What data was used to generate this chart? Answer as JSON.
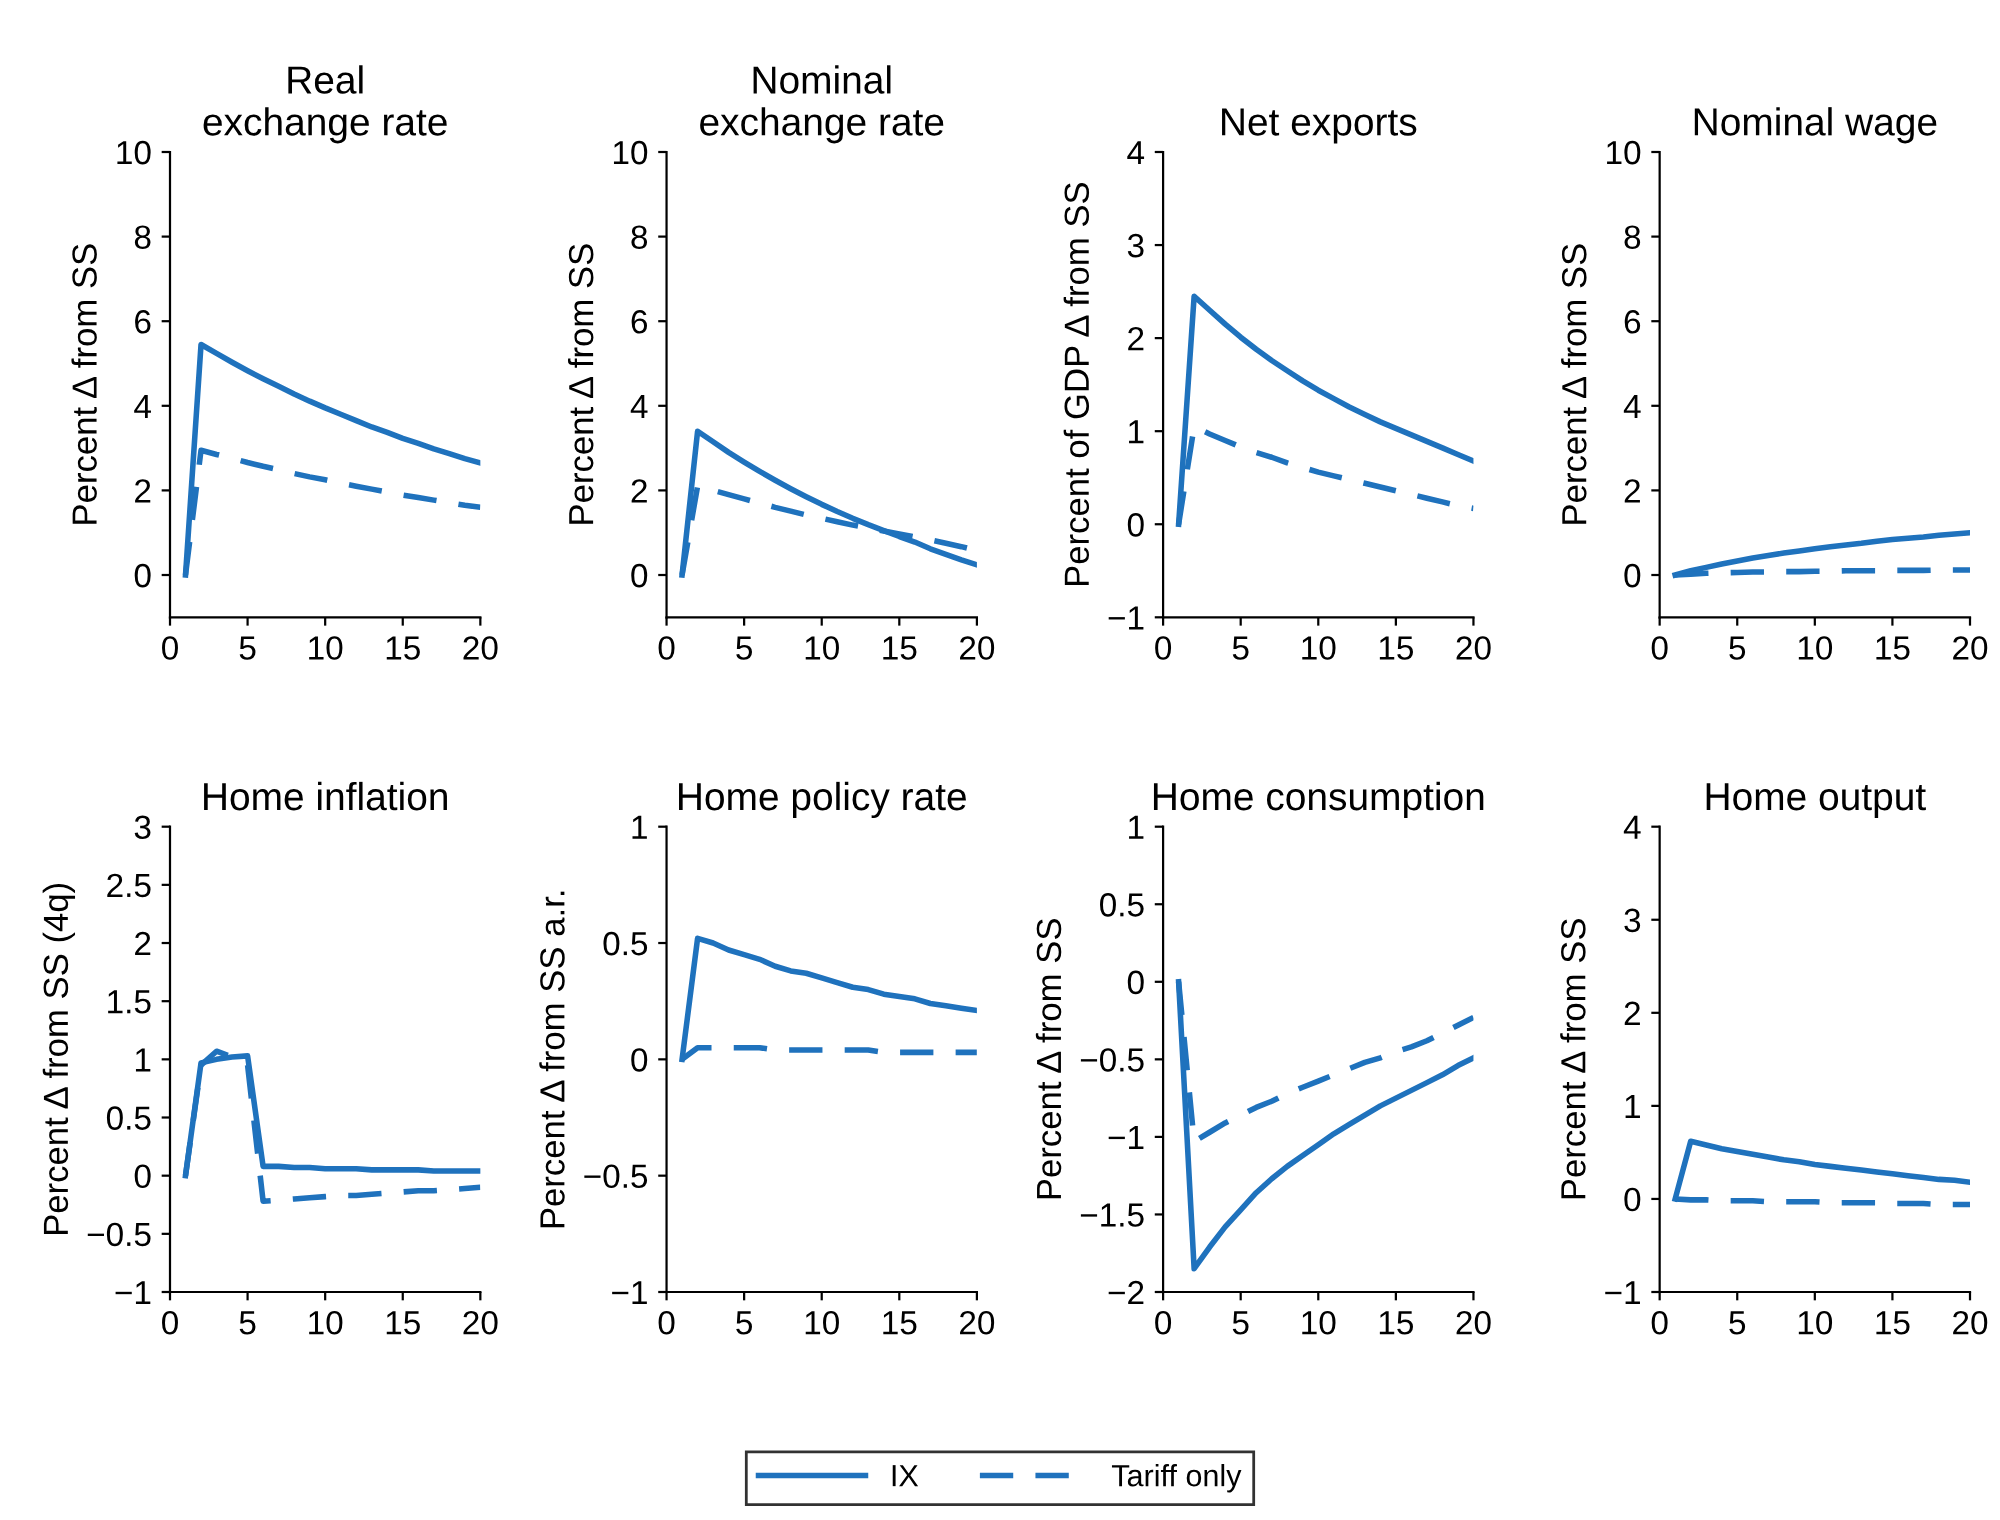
{
  "chart_data": [
    {
      "type": "line",
      "title": "Real\nexchange rate",
      "ylabel": "Percent Δ from SS",
      "legend": "bottom",
      "x": [
        1,
        2,
        3,
        4,
        5,
        6,
        7,
        8,
        9,
        10,
        11,
        12,
        13,
        14,
        15,
        16,
        17,
        18,
        19,
        20
      ],
      "xlim": [
        0,
        20
      ],
      "xticks": [
        0,
        5,
        10,
        15,
        20
      ],
      "ylim": [
        -1,
        10
      ],
      "yticks": [
        0,
        2,
        4,
        6,
        8,
        10
      ],
      "series": [
        {
          "name": "IX",
          "color": "#1f72bd",
          "line_style": "solid",
          "values": [
            0,
            5.45,
            5.24,
            5.03,
            4.83,
            4.64,
            4.46,
            4.28,
            4.11,
            3.95,
            3.8,
            3.65,
            3.5,
            3.37,
            3.23,
            3.11,
            2.98,
            2.87,
            2.75,
            2.65
          ]
        },
        {
          "name": "Tariff only",
          "color": "#1f72bd",
          "line_style": "dashed",
          "values": [
            0,
            2.95,
            2.85,
            2.76,
            2.66,
            2.57,
            2.49,
            2.4,
            2.32,
            2.25,
            2.17,
            2.1,
            2.03,
            1.96,
            1.89,
            1.83,
            1.77,
            1.71,
            1.65,
            1.6
          ]
        }
      ]
    },
    {
      "type": "line",
      "title": "Nominal\nexchange rate",
      "ylabel": "Percent Δ from SS",
      "x": [
        1,
        2,
        3,
        4,
        5,
        6,
        7,
        8,
        9,
        10,
        11,
        12,
        13,
        14,
        15,
        16,
        17,
        18,
        19,
        20
      ],
      "xlim": [
        0,
        20
      ],
      "xticks": [
        0,
        5,
        10,
        15,
        20
      ],
      "ylim": [
        -1,
        10
      ],
      "yticks": [
        0,
        2,
        4,
        6,
        8,
        10
      ],
      "series": [
        {
          "color": "#1f72bd",
          "line_style": "solid",
          "values": [
            0,
            3.4,
            3.15,
            2.9,
            2.67,
            2.45,
            2.24,
            2.04,
            1.85,
            1.67,
            1.5,
            1.34,
            1.19,
            1.05,
            0.91,
            0.78,
            0.62,
            0.49,
            0.36,
            0.24
          ]
        },
        {
          "color": "#1f72bd",
          "line_style": "dashed",
          "values": [
            0,
            2.1,
            2.0,
            1.9,
            1.8,
            1.7,
            1.6,
            1.51,
            1.42,
            1.34,
            1.26,
            1.18,
            1.11,
            1.04,
            0.97,
            0.9,
            0.83,
            0.75,
            0.67,
            0.58
          ]
        }
      ]
    },
    {
      "type": "line",
      "title": "Net exports",
      "ylabel": "Percent of GDP Δ from SS",
      "x": [
        1,
        2,
        3,
        4,
        5,
        6,
        7,
        8,
        9,
        10,
        11,
        12,
        13,
        14,
        15,
        16,
        17,
        18,
        19,
        20
      ],
      "xlim": [
        0,
        20
      ],
      "xticks": [
        0,
        5,
        10,
        15,
        20
      ],
      "ylim": [
        -1,
        4
      ],
      "yticks": [
        -1,
        0,
        1,
        2,
        3,
        4
      ],
      "series": [
        {
          "color": "#1f72bd",
          "line_style": "solid",
          "values": [
            0,
            2.45,
            2.3,
            2.15,
            2.01,
            1.88,
            1.76,
            1.65,
            1.54,
            1.44,
            1.35,
            1.26,
            1.18,
            1.1,
            1.03,
            0.96,
            0.89,
            0.82,
            0.75,
            0.68
          ]
        },
        {
          "color": "#1f72bd",
          "line_style": "dashed",
          "values": [
            0,
            1.05,
            0.97,
            0.9,
            0.83,
            0.77,
            0.72,
            0.66,
            0.61,
            0.56,
            0.52,
            0.48,
            0.44,
            0.4,
            0.36,
            0.32,
            0.28,
            0.24,
            0.2,
            0.17
          ]
        }
      ]
    },
    {
      "type": "line",
      "title": "Nominal wage",
      "ylabel": "Percent Δ from SS",
      "x": [
        1,
        2,
        3,
        4,
        5,
        6,
        7,
        8,
        9,
        10,
        11,
        12,
        13,
        14,
        15,
        16,
        17,
        18,
        19,
        20
      ],
      "xlim": [
        0,
        20
      ],
      "xticks": [
        0,
        5,
        10,
        15,
        20
      ],
      "ylim": [
        -1,
        10
      ],
      "yticks": [
        0,
        2,
        4,
        6,
        8,
        10
      ],
      "series": [
        {
          "color": "#1f72bd",
          "line_style": "solid",
          "values": [
            0,
            0.1,
            0.18,
            0.26,
            0.33,
            0.4,
            0.46,
            0.52,
            0.57,
            0.62,
            0.67,
            0.71,
            0.75,
            0.8,
            0.84,
            0.87,
            0.9,
            0.94,
            0.97,
            1.0
          ]
        },
        {
          "color": "#1f72bd",
          "line_style": "dashed",
          "values": [
            0,
            0.02,
            0.04,
            0.05,
            0.06,
            0.07,
            0.07,
            0.08,
            0.08,
            0.09,
            0.09,
            0.1,
            0.1,
            0.1,
            0.11,
            0.11,
            0.11,
            0.12,
            0.12,
            0.12
          ]
        }
      ]
    },
    {
      "type": "line",
      "title": "Home inflation",
      "ylabel": "Percent Δ from SS (4q)",
      "x": [
        1,
        2,
        3,
        4,
        5,
        6,
        7,
        8,
        9,
        10,
        11,
        12,
        13,
        14,
        15,
        16,
        17,
        18,
        19,
        20
      ],
      "xlim": [
        0,
        20
      ],
      "xticks": [
        0,
        5,
        10,
        15,
        20
      ],
      "ylim": [
        -1,
        3
      ],
      "yticks": [
        -1,
        -0.5,
        0,
        0.5,
        1,
        1.5,
        2,
        2.5,
        3
      ],
      "series": [
        {
          "color": "#1f72bd",
          "line_style": "solid",
          "values": [
            0,
            0.97,
            1.0,
            1.02,
            1.03,
            0.08,
            0.08,
            0.07,
            0.07,
            0.06,
            0.06,
            0.06,
            0.05,
            0.05,
            0.05,
            0.05,
            0.04,
            0.04,
            0.04,
            0.04
          ]
        },
        {
          "color": "#1f72bd",
          "line_style": "dashed",
          "values": [
            0,
            0.95,
            1.07,
            1.02,
            0.95,
            -0.22,
            -0.21,
            -0.2,
            -0.19,
            -0.18,
            -0.17,
            -0.17,
            -0.16,
            -0.15,
            -0.14,
            -0.13,
            -0.13,
            -0.12,
            -0.11,
            -0.1
          ]
        }
      ]
    },
    {
      "type": "line",
      "title": "Home policy rate",
      "ylabel": "Percent Δ from SS a.r.",
      "x": [
        1,
        2,
        3,
        4,
        5,
        6,
        7,
        8,
        9,
        10,
        11,
        12,
        13,
        14,
        15,
        16,
        17,
        18,
        19,
        20
      ],
      "xlim": [
        0,
        20
      ],
      "xticks": [
        0,
        5,
        10,
        15,
        20
      ],
      "ylim": [
        -1,
        1
      ],
      "yticks": [
        -1,
        -0.5,
        0,
        0.5,
        1
      ],
      "series": [
        {
          "color": "#1f72bd",
          "line_style": "solid",
          "values": [
            0,
            0.52,
            0.5,
            0.47,
            0.45,
            0.43,
            0.4,
            0.38,
            0.37,
            0.35,
            0.33,
            0.31,
            0.3,
            0.28,
            0.27,
            0.26,
            0.24,
            0.23,
            0.22,
            0.21
          ]
        },
        {
          "color": "#1f72bd",
          "line_style": "dashed",
          "values": [
            0,
            0.05,
            0.05,
            0.05,
            0.05,
            0.05,
            0.04,
            0.04,
            0.04,
            0.04,
            0.04,
            0.04,
            0.04,
            0.03,
            0.03,
            0.03,
            0.03,
            0.03,
            0.03,
            0.03
          ]
        }
      ]
    },
    {
      "type": "line",
      "title": "Home consumption",
      "ylabel": "Percent Δ from SS",
      "x": [
        1,
        2,
        3,
        4,
        5,
        6,
        7,
        8,
        9,
        10,
        11,
        12,
        13,
        14,
        15,
        16,
        17,
        18,
        19,
        20
      ],
      "xlim": [
        0,
        20
      ],
      "xticks": [
        0,
        5,
        10,
        15,
        20
      ],
      "ylim": [
        -2,
        1
      ],
      "yticks": [
        -2,
        -1.5,
        -1,
        -0.5,
        0,
        0.5,
        1
      ],
      "series": [
        {
          "color": "#1f72bd",
          "line_style": "solid",
          "values": [
            0,
            -1.85,
            -1.71,
            -1.58,
            -1.47,
            -1.36,
            -1.27,
            -1.19,
            -1.12,
            -1.05,
            -0.98,
            -0.92,
            -0.86,
            -0.8,
            -0.75,
            -0.7,
            -0.65,
            -0.6,
            -0.54,
            -0.49
          ]
        },
        {
          "color": "#1f72bd",
          "line_style": "dashed",
          "values": [
            0,
            -1.03,
            -0.97,
            -0.91,
            -0.86,
            -0.81,
            -0.77,
            -0.72,
            -0.68,
            -0.64,
            -0.6,
            -0.56,
            -0.52,
            -0.49,
            -0.45,
            -0.42,
            -0.38,
            -0.33,
            -0.28,
            -0.23
          ]
        }
      ]
    },
    {
      "type": "line",
      "title": "Home output",
      "ylabel": "Percent Δ from SS",
      "x": [
        1,
        2,
        3,
        4,
        5,
        6,
        7,
        8,
        9,
        10,
        11,
        12,
        13,
        14,
        15,
        16,
        17,
        18,
        19,
        20
      ],
      "xlim": [
        0,
        20
      ],
      "xticks": [
        0,
        5,
        10,
        15,
        20
      ],
      "ylim": [
        -1,
        4
      ],
      "yticks": [
        -1,
        0,
        1,
        2,
        3,
        4
      ],
      "series": [
        {
          "color": "#1f72bd",
          "line_style": "solid",
          "values": [
            0,
            0.62,
            0.58,
            0.54,
            0.51,
            0.48,
            0.45,
            0.42,
            0.4,
            0.37,
            0.35,
            0.33,
            0.31,
            0.29,
            0.27,
            0.25,
            0.23,
            0.21,
            0.2,
            0.18
          ]
        },
        {
          "color": "#1f72bd",
          "line_style": "dashed",
          "values": [
            0,
            -0.01,
            -0.01,
            -0.02,
            -0.02,
            -0.02,
            -0.03,
            -0.03,
            -0.03,
            -0.03,
            -0.04,
            -0.04,
            -0.04,
            -0.04,
            -0.05,
            -0.05,
            -0.05,
            -0.06,
            -0.06,
            -0.06
          ]
        }
      ]
    }
  ]
}
